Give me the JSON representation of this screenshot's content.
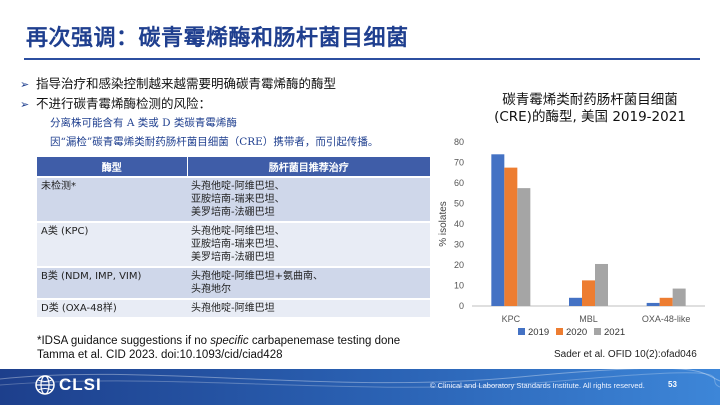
{
  "slide": {
    "title": "再次强调：碳青霉烯酶和肠杆菌目细菌",
    "page_number": "53"
  },
  "bullets": [
    {
      "text": "指导治疗和感染控制越来越需要明确碳青霉烯酶的酶型"
    },
    {
      "text": "不进行碳青霉烯酶检测的风险："
    }
  ],
  "sub_bullets": [
    "分离株可能含有 A 类或 D 类碳青霉烯酶",
    "因“漏检”碳青霉烯类耐药肠杆菌目细菌（CRE）携带者，而引起传播。"
  ],
  "table": {
    "headers": [
      "酶型",
      "肠杆菌目推荐治疗"
    ],
    "rows": [
      {
        "enzyme": "未检测*",
        "treatment": [
          "头孢他啶-阿维巴坦、",
          "亚胺培南-瑞来巴坦、",
          "美罗培南-法硼巴坦"
        ]
      },
      {
        "enzyme": "A类 (KPC)",
        "treatment": [
          "头孢他啶-阿维巴坦、",
          "亚胺培南-瑞来巴坦、",
          "美罗培南-法硼巴坦"
        ]
      },
      {
        "enzyme": "B类 (NDM, IMP, VIM)",
        "treatment": [
          "头孢他啶-阿维巴坦+氨曲南、",
          "头孢地尔"
        ]
      },
      {
        "enzyme": "D类 (OXA-48样)",
        "treatment": [
          "头孢他啶-阿维巴坦"
        ]
      }
    ]
  },
  "footnote": {
    "line1_pre": "*IDSA guidance suggestions if no ",
    "line1_em": "specific",
    "line1_post": " carbapenemase testing done",
    "line2": " Tamma et al. CID 2023. doi:10.1093/cid/ciad428"
  },
  "chart_title": {
    "line1": "碳青霉烯类耐药肠杆菌目细菌",
    "line2": "(CRE)的酶型, 美国   2019-2021"
  },
  "chart_data": {
    "type": "bar",
    "categories": [
      "KPC",
      "MBL",
      "OXA-48-like"
    ],
    "series": [
      {
        "name": "2019",
        "values": [
          74,
          4,
          1.5
        ],
        "color": "#4472c4"
      },
      {
        "name": "2020",
        "values": [
          67.5,
          12.5,
          4
        ],
        "color": "#ed7d31"
      },
      {
        "name": "2021",
        "values": [
          57.5,
          20.5,
          8.5
        ],
        "color": "#a5a5a5"
      }
    ],
    "ylabel": "% isolates",
    "ylim": [
      0,
      80
    ],
    "yticks": [
      0,
      10,
      20,
      30,
      40,
      50,
      60,
      70,
      80
    ],
    "grid": false,
    "legend": "bottom"
  },
  "citation": "Sader et al. OFID 10(2):ofad046",
  "footer": {
    "logo_text": "CLSI",
    "copyright": "© Clinical and Laboratory Standards Institute. All rights reserved."
  }
}
